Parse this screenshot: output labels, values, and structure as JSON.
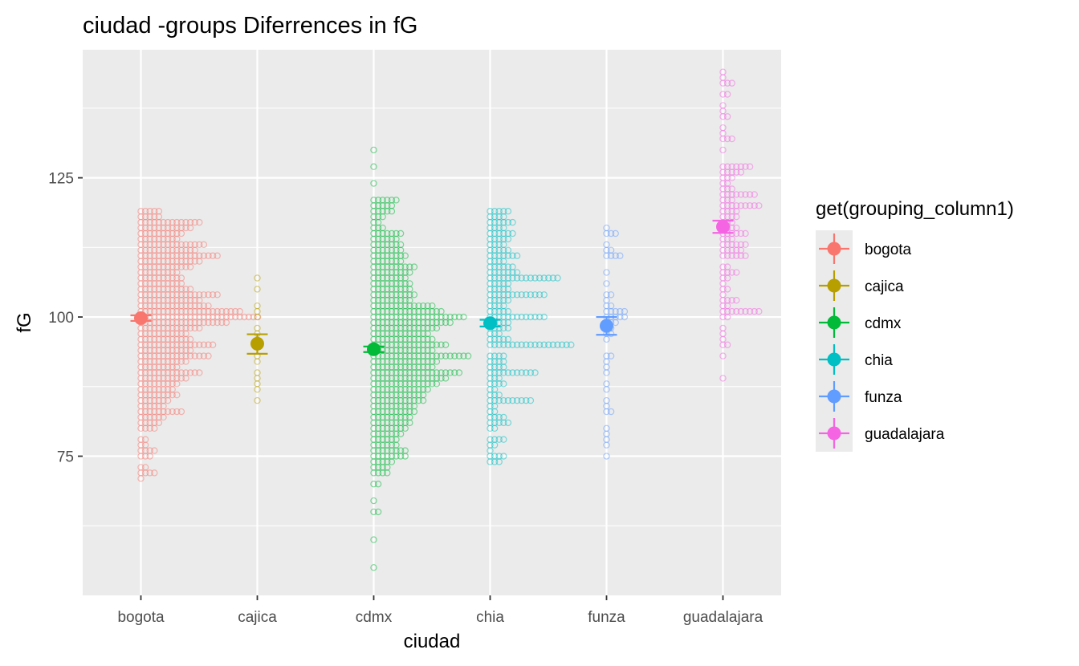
{
  "chart_data": {
    "type": "scatter",
    "title": "ciudad -groups Diferrences in  fG",
    "xlabel": "ciudad",
    "ylabel": "fG",
    "categories": [
      "bogota",
      "cajica",
      "cdmx",
      "chia",
      "funza",
      "guadalajara"
    ],
    "ylim": [
      50,
      148
    ],
    "yticks": [
      75,
      100,
      125
    ],
    "grid": true,
    "legend_title": "get(grouping_column1)",
    "legend_position": "right",
    "colors": {
      "bogota": "#F8766D",
      "cajica": "#B79F00",
      "cdmx": "#00BA38",
      "chia": "#00BFC4",
      "funza": "#619CFF",
      "guadalajara": "#F564E3"
    },
    "means": [
      {
        "group": "bogota",
        "mean": 99.8,
        "lower": 99.3,
        "upper": 100.3
      },
      {
        "group": "cajica",
        "mean": 95.2,
        "lower": 93.4,
        "upper": 96.9
      },
      {
        "group": "cdmx",
        "mean": 94.2,
        "lower": 93.7,
        "upper": 94.7
      },
      {
        "group": "chia",
        "mean": 98.9,
        "lower": 98.3,
        "upper": 99.5
      },
      {
        "group": "funza",
        "mean": 98.4,
        "lower": 96.8,
        "upper": 100.0
      },
      {
        "group": "guadalajara",
        "mean": 116.2,
        "lower": 115.1,
        "upper": 117.3
      }
    ],
    "dot_distributions": [
      {
        "group": "bogota",
        "counts": [
          [
            71,
            1
          ],
          [
            72,
            4
          ],
          [
            73,
            2
          ],
          [
            75,
            3
          ],
          [
            76,
            4
          ],
          [
            77,
            2
          ],
          [
            78,
            2
          ],
          [
            80,
            4
          ],
          [
            81,
            5
          ],
          [
            82,
            6
          ],
          [
            83,
            10
          ],
          [
            84,
            6
          ],
          [
            85,
            7
          ],
          [
            86,
            9
          ],
          [
            87,
            8
          ],
          [
            88,
            9
          ],
          [
            89,
            11
          ],
          [
            90,
            14
          ],
          [
            91,
            9
          ],
          [
            92,
            11
          ],
          [
            93,
            16
          ],
          [
            94,
            12
          ],
          [
            95,
            17
          ],
          [
            96,
            12
          ],
          [
            97,
            11
          ],
          [
            98,
            14
          ],
          [
            99,
            20
          ],
          [
            100,
            27
          ],
          [
            101,
            23
          ],
          [
            102,
            16
          ],
          [
            103,
            14
          ],
          [
            104,
            18
          ],
          [
            105,
            12
          ],
          [
            106,
            10
          ],
          [
            107,
            10
          ],
          [
            108,
            9
          ],
          [
            109,
            12
          ],
          [
            110,
            14
          ],
          [
            111,
            18
          ],
          [
            112,
            13
          ],
          [
            113,
            15
          ],
          [
            114,
            9
          ],
          [
            115,
            10
          ],
          [
            116,
            12
          ],
          [
            117,
            14
          ],
          [
            118,
            5
          ],
          [
            119,
            5
          ]
        ]
      },
      {
        "group": "cajica",
        "counts": [
          [
            85,
            1
          ],
          [
            87,
            1
          ],
          [
            88,
            1
          ],
          [
            89,
            1
          ],
          [
            90,
            1
          ],
          [
            92,
            1
          ],
          [
            93,
            1
          ],
          [
            95,
            1
          ],
          [
            97,
            1
          ],
          [
            98,
            1
          ],
          [
            100,
            1
          ],
          [
            101,
            1
          ],
          [
            102,
            1
          ],
          [
            105,
            1
          ],
          [
            107,
            1
          ]
        ]
      },
      {
        "group": "cdmx",
        "counts": [
          [
            55,
            1
          ],
          [
            60,
            1
          ],
          [
            65,
            2
          ],
          [
            67,
            1
          ],
          [
            70,
            2
          ],
          [
            72,
            4
          ],
          [
            73,
            4
          ],
          [
            74,
            5
          ],
          [
            75,
            8
          ],
          [
            76,
            8
          ],
          [
            77,
            6
          ],
          [
            78,
            6
          ],
          [
            79,
            7
          ],
          [
            80,
            8
          ],
          [
            81,
            9
          ],
          [
            82,
            9
          ],
          [
            83,
            10
          ],
          [
            84,
            10
          ],
          [
            85,
            12
          ],
          [
            86,
            12
          ],
          [
            87,
            13
          ],
          [
            88,
            15
          ],
          [
            89,
            17
          ],
          [
            90,
            20
          ],
          [
            91,
            14
          ],
          [
            92,
            15
          ],
          [
            93,
            22
          ],
          [
            94,
            14
          ],
          [
            95,
            17
          ],
          [
            96,
            14
          ],
          [
            97,
            13
          ],
          [
            98,
            15
          ],
          [
            99,
            18
          ],
          [
            100,
            21
          ],
          [
            101,
            16
          ],
          [
            102,
            14
          ],
          [
            103,
            9
          ],
          [
            104,
            10
          ],
          [
            105,
            9
          ],
          [
            106,
            9
          ],
          [
            107,
            8
          ],
          [
            108,
            9
          ],
          [
            109,
            10
          ],
          [
            110,
            7
          ],
          [
            111,
            8
          ],
          [
            112,
            7
          ],
          [
            113,
            7
          ],
          [
            114,
            6
          ],
          [
            115,
            7
          ],
          [
            116,
            3
          ],
          [
            117,
            2
          ],
          [
            118,
            3
          ],
          [
            119,
            5
          ],
          [
            120,
            5
          ],
          [
            121,
            6
          ],
          [
            124,
            1
          ],
          [
            127,
            1
          ],
          [
            130,
            1
          ]
        ]
      },
      {
        "group": "chia",
        "counts": [
          [
            74,
            3
          ],
          [
            75,
            4
          ],
          [
            76,
            1
          ],
          [
            77,
            2
          ],
          [
            78,
            4
          ],
          [
            80,
            2
          ],
          [
            81,
            5
          ],
          [
            82,
            4
          ],
          [
            83,
            2
          ],
          [
            84,
            2
          ],
          [
            85,
            10
          ],
          [
            86,
            3
          ],
          [
            87,
            2
          ],
          [
            88,
            4
          ],
          [
            89,
            3
          ],
          [
            90,
            11
          ],
          [
            91,
            4
          ],
          [
            92,
            4
          ],
          [
            93,
            4
          ],
          [
            95,
            19
          ],
          [
            96,
            5
          ],
          [
            97,
            3
          ],
          [
            98,
            5
          ],
          [
            99,
            5
          ],
          [
            100,
            13
          ],
          [
            101,
            5
          ],
          [
            102,
            4
          ],
          [
            103,
            5
          ],
          [
            104,
            13
          ],
          [
            105,
            5
          ],
          [
            106,
            5
          ],
          [
            107,
            16
          ],
          [
            108,
            7
          ],
          [
            109,
            6
          ],
          [
            110,
            4
          ],
          [
            111,
            7
          ],
          [
            112,
            5
          ],
          [
            113,
            4
          ],
          [
            114,
            5
          ],
          [
            115,
            6
          ],
          [
            116,
            4
          ],
          [
            117,
            6
          ],
          [
            118,
            4
          ],
          [
            119,
            5
          ]
        ]
      },
      {
        "group": "funza",
        "counts": [
          [
            75,
            1
          ],
          [
            77,
            1
          ],
          [
            78,
            1
          ],
          [
            79,
            1
          ],
          [
            80,
            1
          ],
          [
            83,
            2
          ],
          [
            84,
            1
          ],
          [
            85,
            1
          ],
          [
            87,
            1
          ],
          [
            88,
            1
          ],
          [
            90,
            1
          ],
          [
            91,
            1
          ],
          [
            92,
            1
          ],
          [
            93,
            2
          ],
          [
            96,
            1
          ],
          [
            97,
            2
          ],
          [
            98,
            2
          ],
          [
            99,
            3
          ],
          [
            100,
            5
          ],
          [
            101,
            5
          ],
          [
            102,
            2
          ],
          [
            103,
            1
          ],
          [
            104,
            2
          ],
          [
            106,
            1
          ],
          [
            108,
            1
          ],
          [
            111,
            4
          ],
          [
            112,
            2
          ],
          [
            113,
            1
          ],
          [
            115,
            3
          ],
          [
            116,
            1
          ]
        ]
      },
      {
        "group": "guadalajara",
        "counts": [
          [
            89,
            1
          ],
          [
            93,
            1
          ],
          [
            95,
            2
          ],
          [
            96,
            1
          ],
          [
            97,
            1
          ],
          [
            98,
            1
          ],
          [
            100,
            2
          ],
          [
            101,
            9
          ],
          [
            102,
            2
          ],
          [
            103,
            4
          ],
          [
            104,
            1
          ],
          [
            105,
            2
          ],
          [
            106,
            1
          ],
          [
            107,
            2
          ],
          [
            108,
            4
          ],
          [
            109,
            2
          ],
          [
            111,
            6
          ],
          [
            112,
            5
          ],
          [
            113,
            6
          ],
          [
            114,
            3
          ],
          [
            115,
            6
          ],
          [
            116,
            4
          ],
          [
            117,
            3
          ],
          [
            118,
            4
          ],
          [
            119,
            4
          ],
          [
            120,
            9
          ],
          [
            121,
            3
          ],
          [
            122,
            8
          ],
          [
            123,
            3
          ],
          [
            124,
            2
          ],
          [
            125,
            3
          ],
          [
            126,
            5
          ],
          [
            127,
            7
          ],
          [
            130,
            1
          ],
          [
            132,
            3
          ],
          [
            133,
            1
          ],
          [
            134,
            1
          ],
          [
            136,
            2
          ],
          [
            137,
            1
          ],
          [
            138,
            1
          ],
          [
            140,
            2
          ],
          [
            142,
            3
          ],
          [
            143,
            1
          ],
          [
            144,
            1
          ]
        ]
      }
    ]
  }
}
